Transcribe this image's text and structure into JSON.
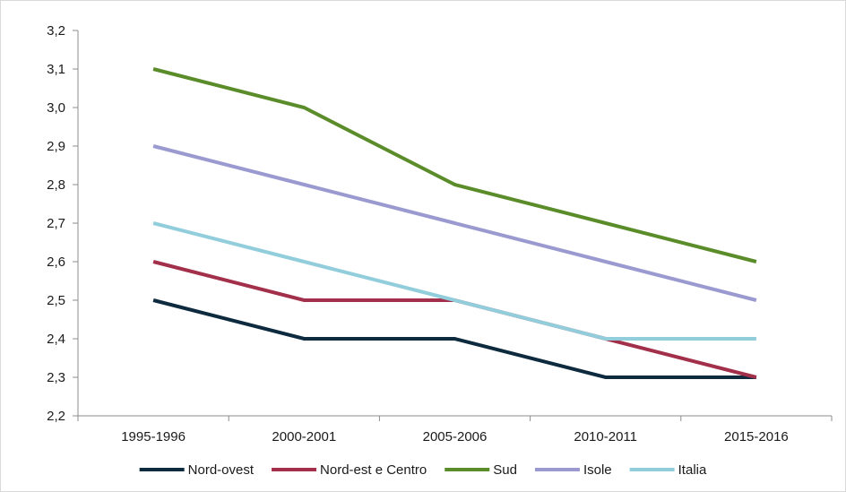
{
  "chart_data": {
    "type": "line",
    "title": "",
    "xlabel": "",
    "ylabel": "",
    "categories": [
      "1995-1996",
      "2000-2001",
      "2005-2006",
      "2010-2011",
      "2015-2016"
    ],
    "ylim": [
      2.2,
      3.2
    ],
    "yticks": [
      "2,2",
      "2,3",
      "2,4",
      "2,5",
      "2,6",
      "2,7",
      "2,8",
      "2,9",
      "3,0",
      "3,1",
      "3,2"
    ],
    "grid": false,
    "legend_position": "bottom",
    "series": [
      {
        "name": "Nord-ovest",
        "color": "#0d2a3f",
        "values": [
          2.5,
          2.4,
          2.4,
          2.3,
          2.3
        ]
      },
      {
        "name": "Nord-est e Centro",
        "color": "#a3304a",
        "values": [
          2.6,
          2.5,
          2.5,
          2.4,
          2.3
        ]
      },
      {
        "name": "Sud",
        "color": "#5b8c2a",
        "values": [
          3.1,
          3.0,
          2.8,
          2.7,
          2.6
        ]
      },
      {
        "name": "Isole",
        "color": "#9a9ad0",
        "values": [
          2.9,
          2.8,
          2.7,
          2.6,
          2.5
        ]
      },
      {
        "name": "Italia",
        "color": "#92cddc",
        "values": [
          2.7,
          2.6,
          2.5,
          2.4,
          2.4
        ]
      }
    ]
  }
}
